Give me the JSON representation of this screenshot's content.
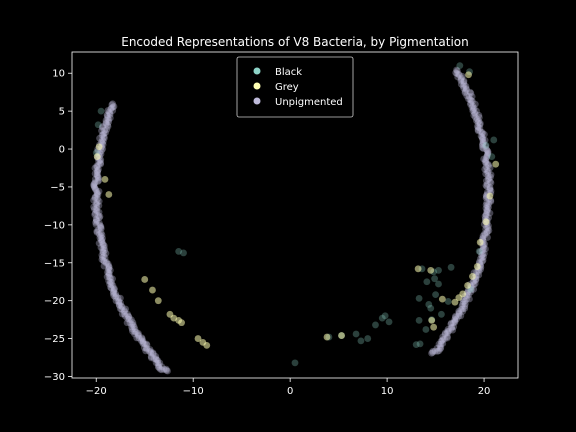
{
  "chart_data": {
    "type": "scatter",
    "title": "Encoded Representations of V8 Bacteria, by Pigmentation",
    "xlabel": "",
    "ylabel": "",
    "xlim": [
      -22.5,
      23.5
    ],
    "ylim": [
      -30.2,
      12.8
    ],
    "xticks": [
      -20,
      -10,
      0,
      10,
      20
    ],
    "yticks": [
      10,
      5,
      0,
      -5,
      -10,
      -15,
      -20,
      -25,
      -30
    ],
    "xtick_labels": [
      "−20",
      "−10",
      "0",
      "10",
      "20"
    ],
    "ytick_labels": [
      "10",
      "5",
      "0",
      "−5",
      "−10",
      "−15",
      "−20",
      "−25",
      "−30"
    ],
    "grid": false,
    "legend_position": "top-center",
    "background": "#000000",
    "series": [
      {
        "name": "Black",
        "color": "#8dd3c7",
        "points": [
          [
            0.5,
            -28.2
          ],
          [
            4,
            -24.8
          ],
          [
            5.3,
            -24.6
          ],
          [
            6.8,
            -24.4
          ],
          [
            7.3,
            -25.3
          ],
          [
            8.0,
            -25.0
          ],
          [
            8.8,
            -23.2
          ],
          [
            9.5,
            -22.3
          ],
          [
            9.8,
            -22.0
          ],
          [
            10.2,
            -22.8
          ],
          [
            -11.5,
            -13.5
          ],
          [
            -11.0,
            -13.7
          ],
          [
            13.3,
            -19.7
          ],
          [
            13.6,
            -15.8
          ],
          [
            14.3,
            -20.5
          ],
          [
            14.8,
            -16.2
          ],
          [
            14.9,
            -17.1
          ],
          [
            15.3,
            -16.0
          ],
          [
            15.3,
            -17.8
          ],
          [
            14.1,
            -17.5
          ],
          [
            15.0,
            -19.2
          ],
          [
            14.5,
            -21.0
          ],
          [
            16.3,
            -20.1
          ],
          [
            16.6,
            -15.6
          ],
          [
            14.0,
            -23.8
          ],
          [
            13.3,
            -22.6
          ],
          [
            13.0,
            -25.8
          ],
          [
            13.4,
            -25.7
          ],
          [
            14.6,
            -22.5
          ],
          [
            15.6,
            -21.8
          ],
          [
            20.2,
            0.5
          ],
          [
            20.8,
            -1.0
          ],
          [
            21.0,
            1.2
          ],
          [
            17.5,
            11.0
          ],
          [
            18.5,
            10.2
          ],
          [
            -19.5,
            5.0
          ],
          [
            -19.8,
            3.2
          ],
          [
            -20.0,
            -0.5
          ],
          [
            19.5,
            -13.5
          ],
          [
            18.6,
            -18.5
          ]
        ]
      },
      {
        "name": "Grey",
        "color": "#ffffb3",
        "points": [
          [
            3.8,
            -24.8
          ],
          [
            5.3,
            -24.6
          ],
          [
            13.2,
            -15.8
          ],
          [
            14.5,
            -16.0
          ],
          [
            15.7,
            -19.8
          ],
          [
            14.8,
            -23.5
          ],
          [
            14.6,
            -22.6
          ],
          [
            17.0,
            -20.2
          ],
          [
            17.4,
            -19.6
          ],
          [
            17.8,
            -19.1
          ],
          [
            18.3,
            -18.0
          ],
          [
            18.8,
            -16.8
          ],
          [
            19.3,
            -15.5
          ],
          [
            19.6,
            -12.3
          ],
          [
            20.2,
            -9.6
          ],
          [
            20.6,
            -6.2
          ],
          [
            21.2,
            -2.0
          ],
          [
            18.4,
            9.8
          ],
          [
            -19.1,
            -4.0
          ],
          [
            -18.7,
            -6.0
          ],
          [
            -15.0,
            -17.2
          ],
          [
            -14.2,
            -18.6
          ],
          [
            -13.6,
            -20.0
          ],
          [
            -12.4,
            -21.8
          ],
          [
            -12.0,
            -22.3
          ],
          [
            -11.5,
            -22.6
          ],
          [
            -11.2,
            -22.9
          ],
          [
            -9.5,
            -25.0
          ],
          [
            -8.6,
            -25.9
          ],
          [
            -9.0,
            -25.5
          ],
          [
            -19.7,
            0.3
          ],
          [
            -19.9,
            -1.0
          ]
        ]
      },
      {
        "name": "Unpigmented",
        "color": "#bebada",
        "points": []
      }
    ],
    "arcs": [
      {
        "series": "Unpigmented",
        "desc": "left arc",
        "center": [
          8.0,
          -6.0
        ],
        "rx": 28.0,
        "ry": 35.0,
        "angle_start_deg": 160,
        "angle_end_deg": 222
      },
      {
        "series": "Unpigmented",
        "desc": "right arc",
        "center": [
          -8.0,
          -6.0
        ],
        "rx": 28.5,
        "ry": 35.0,
        "angle_start_deg": 28,
        "angle_end_deg": -37
      }
    ]
  }
}
